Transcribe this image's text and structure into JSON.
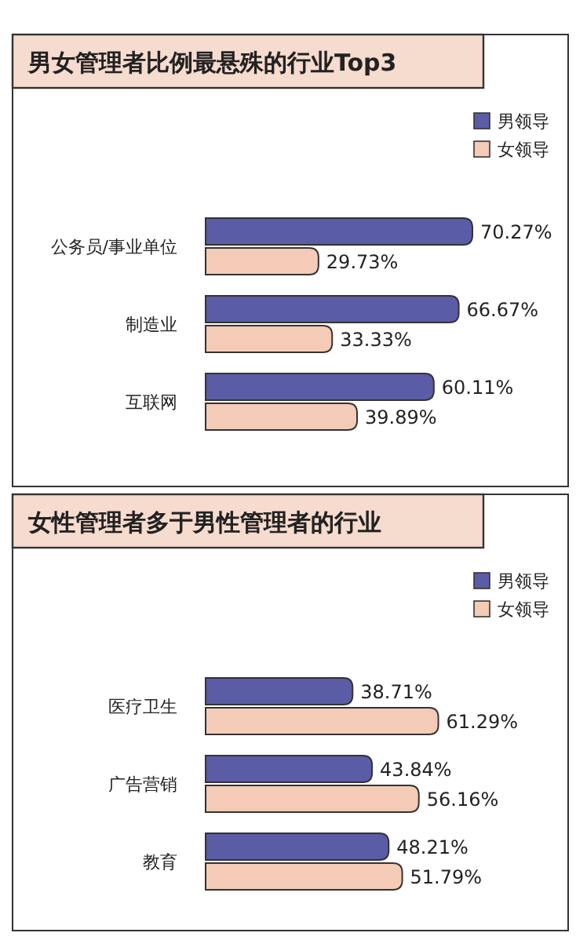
{
  "chart_data": [
    {
      "type": "bar",
      "orientation": "horizontal",
      "title": "男女管理者比例最悬殊的行业Top3",
      "categories": [
        "公务员/事业单位",
        "制造业",
        "互联网"
      ],
      "legend": "top right",
      "series": [
        {
          "name": "男领导",
          "color": "#5b5ca6",
          "values": [
            70.27,
            66.67,
            60.11
          ],
          "value_labels": [
            "70.27%",
            "66.67%",
            "60.11%"
          ]
        },
        {
          "name": "女领导",
          "color": "#f3cbb6",
          "values": [
            29.73,
            33.33,
            39.89
          ],
          "value_labels": [
            "29.73%",
            "33.33%",
            "39.89%"
          ]
        }
      ]
    },
    {
      "type": "bar",
      "orientation": "horizontal",
      "title": "女性管理者多于男性管理者的行业",
      "categories": [
        "医疗卫生",
        "广告营销",
        "教育"
      ],
      "legend": "top right",
      "series": [
        {
          "name": "男领导",
          "color": "#5b5ca6",
          "values": [
            38.71,
            43.84,
            48.21
          ],
          "value_labels": [
            "38.71%",
            "43.84%",
            "48.21%"
          ]
        },
        {
          "name": "女领导",
          "color": "#f3cbb6",
          "values": [
            61.29,
            56.16,
            51.79
          ],
          "value_labels": [
            "61.29%",
            "56.16%",
            "51.79%"
          ]
        }
      ]
    }
  ]
}
